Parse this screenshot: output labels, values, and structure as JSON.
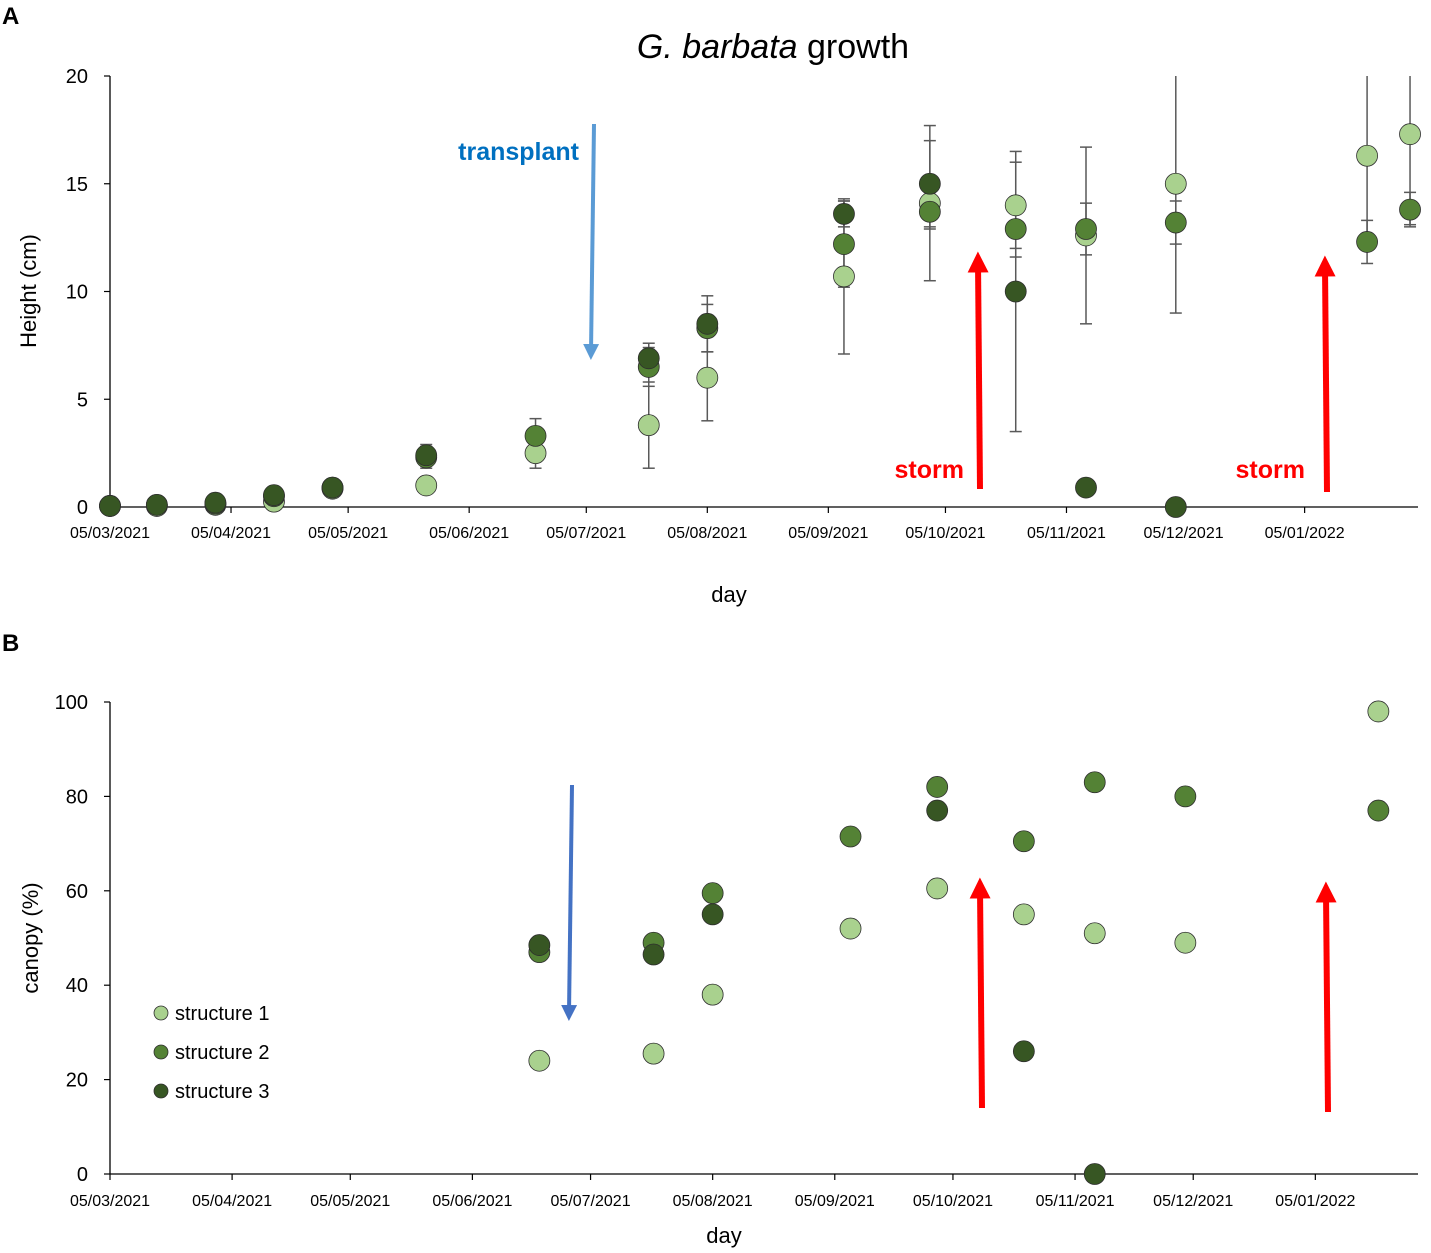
{
  "panel_labels": [
    "A",
    "B"
  ],
  "colors": {
    "structure1": "#a9d18e",
    "structure2": "#548235",
    "structure3": "#375623",
    "transplant_arrow_a": "#5b9bd5",
    "transplant_arrow_b": "#4472c4",
    "storm_arrow": "#ff0000",
    "transplant_text": "#0070c0",
    "storm_text": "#ff0000",
    "errorbar": "#595959"
  },
  "annotations": {
    "transplant": "transplant",
    "storm_1": "storm",
    "storm_2": "storm"
  },
  "chart_data": [
    {
      "type": "scatter",
      "id": "A",
      "title_italic": "G. barbata",
      "title_rest": " growth",
      "xlabel": "day",
      "ylabel": "Height (cm)",
      "ylim": [
        0,
        20
      ],
      "yticks": [
        0,
        5,
        10,
        15,
        20
      ],
      "xlim": [
        0,
        326
      ],
      "xtick_days": [
        0,
        31,
        61,
        92,
        122,
        153,
        184,
        214,
        245,
        275,
        306
      ],
      "xtick_labels": [
        "05/03/2021",
        "05/04/2021",
        "05/05/2021",
        "05/06/2021",
        "05/07/2021",
        "05/08/2021",
        "05/09/2021",
        "05/10/2021",
        "05/11/2021",
        "05/12/2021",
        "05/01/2022"
      ],
      "series": [
        {
          "name": "structure 1",
          "points": [
            {
              "x": 0,
              "y": 0.05
            },
            {
              "x": 12,
              "y": 0.05
            },
            {
              "x": 27,
              "y": 0.1
            },
            {
              "x": 42,
              "y": 0.25
            },
            {
              "x": 57,
              "y": 0.85
            },
            {
              "x": 81,
              "y": 1.0
            },
            {
              "x": 109,
              "y": 2.5,
              "err": 0.7
            },
            {
              "x": 138,
              "y": 3.8,
              "err": 2.0
            },
            {
              "x": 153,
              "y": 6.0,
              "err": 2.0
            },
            {
              "x": 188,
              "y": 10.7,
              "err": 3.6
            },
            {
              "x": 210,
              "y": 14.1,
              "err": 3.6
            },
            {
              "x": 232,
              "y": 14.0,
              "err": 2.0
            },
            {
              "x": 250,
              "y": 12.6,
              "err": 4.1
            },
            {
              "x": 273,
              "y": 15.0,
              "err": 6.0
            },
            {
              "x": 322,
              "y": 16.3,
              "err": 3.9
            },
            {
              "x": 333,
              "y": 17.3,
              "err": 4.2
            }
          ]
        },
        {
          "name": "structure 2",
          "points": [
            {
              "x": 0,
              "y": 0.05
            },
            {
              "x": 12,
              "y": 0.1
            },
            {
              "x": 27,
              "y": 0.15
            },
            {
              "x": 42,
              "y": 0.5
            },
            {
              "x": 57,
              "y": 0.9
            },
            {
              "x": 81,
              "y": 2.3,
              "err": 0.5
            },
            {
              "x": 109,
              "y": 3.3,
              "err": 0.8
            },
            {
              "x": 138,
              "y": 6.5,
              "err": 0.9
            },
            {
              "x": 153,
              "y": 8.3,
              "err": 1.1
            },
            {
              "x": 188,
              "y": 12.2,
              "err": 2.0
            },
            {
              "x": 210,
              "y": 13.7,
              "err": 0.8
            },
            {
              "x": 232,
              "y": 12.9,
              "err": 1.3
            },
            {
              "x": 250,
              "y": 12.9,
              "err": 1.2
            },
            {
              "x": 273,
              "y": 13.2,
              "err": 1.0
            },
            {
              "x": 322,
              "y": 12.3,
              "err": 1.0
            },
            {
              "x": 333,
              "y": 13.8,
              "err": 0.8
            }
          ]
        },
        {
          "name": "structure 3",
          "points": [
            {
              "x": 0,
              "y": 0.05
            },
            {
              "x": 12,
              "y": 0.1
            },
            {
              "x": 27,
              "y": 0.2
            },
            {
              "x": 42,
              "y": 0.55
            },
            {
              "x": 57,
              "y": 0.9
            },
            {
              "x": 81,
              "y": 2.4,
              "err": 0.5
            },
            {
              "x": 138,
              "y": 6.9,
              "err": 0.7
            },
            {
              "x": 153,
              "y": 8.5,
              "err": 1.3
            },
            {
              "x": 188,
              "y": 13.6,
              "err": 0.6
            },
            {
              "x": 210,
              "y": 15.0,
              "err": 2.0
            },
            {
              "x": 232,
              "y": 10.0,
              "err": 6.5
            },
            {
              "x": 250,
              "y": 0.9
            },
            {
              "x": 273,
              "y": 0.0
            }
          ]
        }
      ]
    },
    {
      "type": "scatter",
      "id": "B",
      "xlabel": "day",
      "ylabel": "canopy (%)",
      "ylim": [
        0,
        100
      ],
      "yticks": [
        0,
        20,
        40,
        60,
        80,
        100
      ],
      "xlim": [
        0,
        326
      ],
      "xtick_days": [
        0,
        31,
        61,
        92,
        122,
        153,
        184,
        214,
        245,
        275,
        306
      ],
      "xtick_labels": [
        "05/03/2021",
        "05/04/2021",
        "05/05/2021",
        "05/06/2021",
        "05/07/2021",
        "05/08/2021",
        "05/09/2021",
        "05/10/2021",
        "05/11/2021",
        "05/12/2021",
        "05/01/2022"
      ],
      "legend_position": "lower-left",
      "series": [
        {
          "name": "structure 1",
          "points": [
            {
              "x": 109,
              "y": 24
            },
            {
              "x": 138,
              "y": 25.5
            },
            {
              "x": 153,
              "y": 38
            },
            {
              "x": 188,
              "y": 52
            },
            {
              "x": 210,
              "y": 60.5
            },
            {
              "x": 232,
              "y": 55
            },
            {
              "x": 250,
              "y": 51
            },
            {
              "x": 273,
              "y": 49
            },
            {
              "x": 322,
              "y": 98
            }
          ]
        },
        {
          "name": "structure 2",
          "points": [
            {
              "x": 109,
              "y": 47
            },
            {
              "x": 138,
              "y": 49
            },
            {
              "x": 153,
              "y": 59.5
            },
            {
              "x": 188,
              "y": 71.5
            },
            {
              "x": 210,
              "y": 82
            },
            {
              "x": 232,
              "y": 70.5
            },
            {
              "x": 250,
              "y": 83
            },
            {
              "x": 273,
              "y": 80
            },
            {
              "x": 322,
              "y": 77
            }
          ]
        },
        {
          "name": "structure 3",
          "points": [
            {
              "x": 109,
              "y": 48.5
            },
            {
              "x": 138,
              "y": 46.5
            },
            {
              "x": 153,
              "y": 55
            },
            {
              "x": 210,
              "y": 77
            },
            {
              "x": 232,
              "y": 26
            },
            {
              "x": 250,
              "y": 0
            }
          ]
        }
      ]
    }
  ]
}
